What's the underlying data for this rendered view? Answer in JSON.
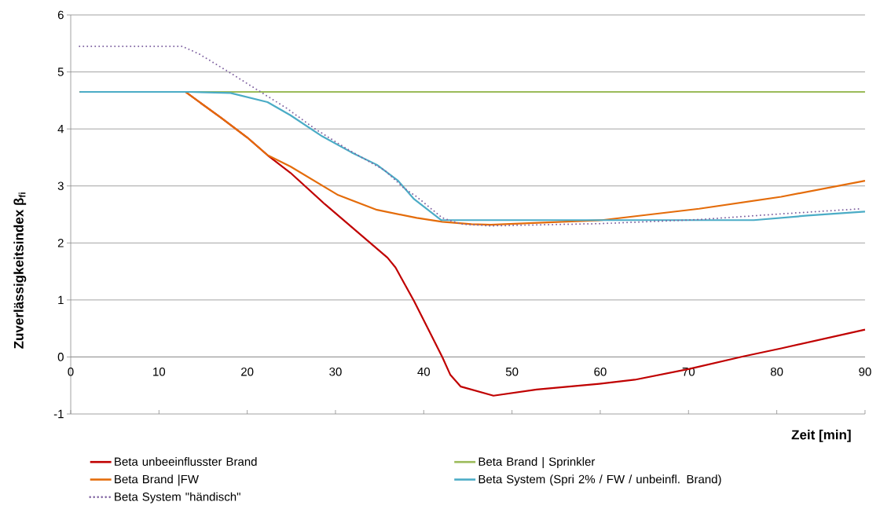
{
  "chart_data": {
    "type": "line",
    "xlabel": "Zeit [min]",
    "ylabel": "Zuverlässigkeitsindex β$_{fi}$",
    "xlim": [
      0,
      90
    ],
    "ylim": [
      -1,
      6
    ],
    "xticks": [
      0,
      10,
      20,
      30,
      40,
      50,
      60,
      70,
      80,
      90
    ],
    "yticks": [
      -1,
      0,
      1,
      2,
      3,
      4,
      5,
      6
    ],
    "grid": "y",
    "legend": "bottom",
    "series": [
      {
        "name": "Beta unbeeinflusster Brand",
        "color": "#c00000",
        "line_style": "solid",
        "x": [
          1,
          13,
          17,
          20,
          22.3,
          24.9,
          28.8,
          35.9,
          36.8,
          38.9,
          40.7,
          42.1,
          43.0,
          44.2,
          47.9,
          52.8,
          59.9,
          63.9,
          70.1,
          76.2,
          80.5,
          90
        ],
        "values": [
          4.65,
          4.65,
          4.2,
          3.85,
          3.54,
          3.23,
          2.68,
          1.74,
          1.57,
          0.98,
          0.43,
          0,
          -0.31,
          -0.52,
          -0.68,
          -0.57,
          -0.47,
          -0.4,
          -0.21,
          0.01,
          0.15,
          0.48
        ]
      },
      {
        "name": "Beta Brand  | Sprinkler",
        "color": "#9bbb59",
        "line_style": "solid",
        "x": [
          1,
          90
        ],
        "values": [
          4.65,
          4.65
        ]
      },
      {
        "name": "Beta Brand  |FW",
        "color": "#e46c0a",
        "line_style": "solid",
        "x": [
          1,
          13,
          17,
          20,
          22.3,
          24.9,
          27.6,
          30.3,
          34.7,
          39.2,
          42.1,
          45.4,
          47.6,
          60.2,
          71.2,
          80.5,
          90
        ],
        "values": [
          4.65,
          4.65,
          4.2,
          3.85,
          3.54,
          3.34,
          3.09,
          2.84,
          2.58,
          2.44,
          2.37,
          2.33,
          2.32,
          2.4,
          2.6,
          2.81,
          3.09
        ]
      },
      {
        "name": "Beta System (Spri 2% / FW / unbeinfl. Brand)",
        "color": "#4bacc6",
        "line_style": "solid",
        "x": [
          1,
          13.4,
          18.1,
          22.3,
          24.9,
          28.5,
          31.8,
          34.7,
          37.1,
          38.9,
          42.0,
          77.4,
          83.5,
          90
        ],
        "values": [
          4.65,
          4.65,
          4.63,
          4.47,
          4.24,
          3.87,
          3.59,
          3.37,
          3.09,
          2.77,
          2.4,
          2.4,
          2.48,
          2.55
        ]
      },
      {
        "name": "Beta System \"händisch\"",
        "color": "#8064a2",
        "line_style": "dotted",
        "x": [
          1,
          12.6,
          14.5,
          17.8,
          21.2,
          24.5,
          27.6,
          31.4,
          35.6,
          37.7,
          39.2,
          42.1,
          44.3,
          47.6,
          60.2,
          71.2,
          80.5,
          89.6
        ],
        "values": [
          5.45,
          5.45,
          5.32,
          5.01,
          4.68,
          4.36,
          4.01,
          3.64,
          3.27,
          2.97,
          2.81,
          2.44,
          2.33,
          2.3,
          2.34,
          2.41,
          2.51,
          2.6
        ]
      }
    ]
  }
}
